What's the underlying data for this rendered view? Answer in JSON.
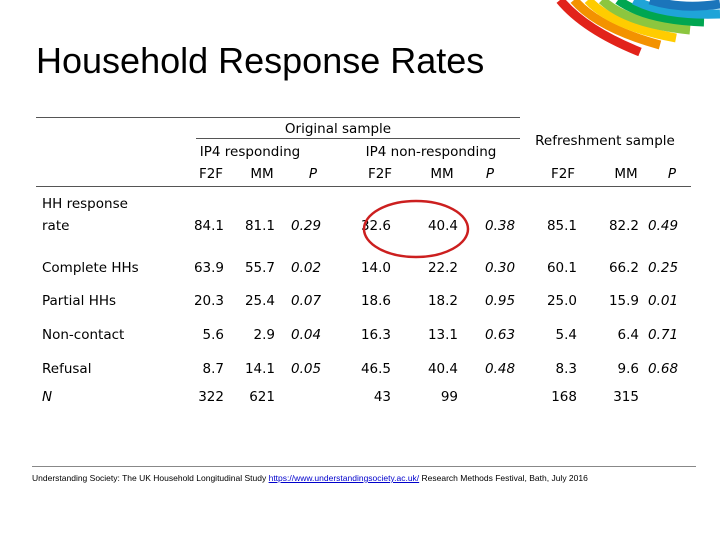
{
  "title": "Household Response Rates",
  "header": {
    "original_sample": "Original sample",
    "refreshment_sample": "Refreshment sample",
    "ip4_responding": "IP4 responding",
    "ip4_non_responding": "IP4 non-responding",
    "columns": [
      "F2F",
      "MM",
      "P",
      "F2F",
      "MM",
      "P",
      "F2F",
      "MM",
      "P"
    ]
  },
  "rows": [
    {
      "label_line1": "HH response",
      "label_line2": "rate",
      "values": [
        "84.1",
        "81.1",
        "0.29",
        "32.6",
        "40.4",
        "0.38",
        "85.1",
        "82.2",
        "0.49"
      ]
    },
    {
      "label": "Complete HHs",
      "values": [
        "63.9",
        "55.7",
        "0.02",
        "14.0",
        "22.2",
        "0.30",
        "60.1",
        "66.2",
        "0.25"
      ]
    },
    {
      "label": "Partial HHs",
      "values": [
        "20.3",
        "25.4",
        "0.07",
        "18.6",
        "18.2",
        "0.95",
        "25.0",
        "15.9",
        "0.01"
      ]
    },
    {
      "label": "Non-contact",
      "values": [
        "5.6",
        "2.9",
        "0.04",
        "16.3",
        "13.1",
        "0.63",
        "5.4",
        "6.4",
        "0.71"
      ]
    },
    {
      "label": "Refusal",
      "values": [
        "8.7",
        "14.1",
        "0.05",
        "46.5",
        "40.4",
        "0.48",
        "8.3",
        "9.6",
        "0.68"
      ]
    },
    {
      "label": "N",
      "values": [
        "322",
        "621",
        "",
        "43",
        "99",
        "",
        "168",
        "315",
        ""
      ]
    }
  ],
  "footer": {
    "text1": "Understanding Society: The UK Household Longitudinal Study",
    "link": "https://www.understandingsociety.ac.uk/",
    "text2": "Research Methods Festival, Bath, July 2016"
  },
  "colors": {
    "highlight_circle": "#cc1f1f",
    "arc_colors": [
      "#e2231a",
      "#f39200",
      "#ffcc00",
      "#8cc63f",
      "#00a651",
      "#1fa4d8",
      "#1b75bb"
    ]
  }
}
